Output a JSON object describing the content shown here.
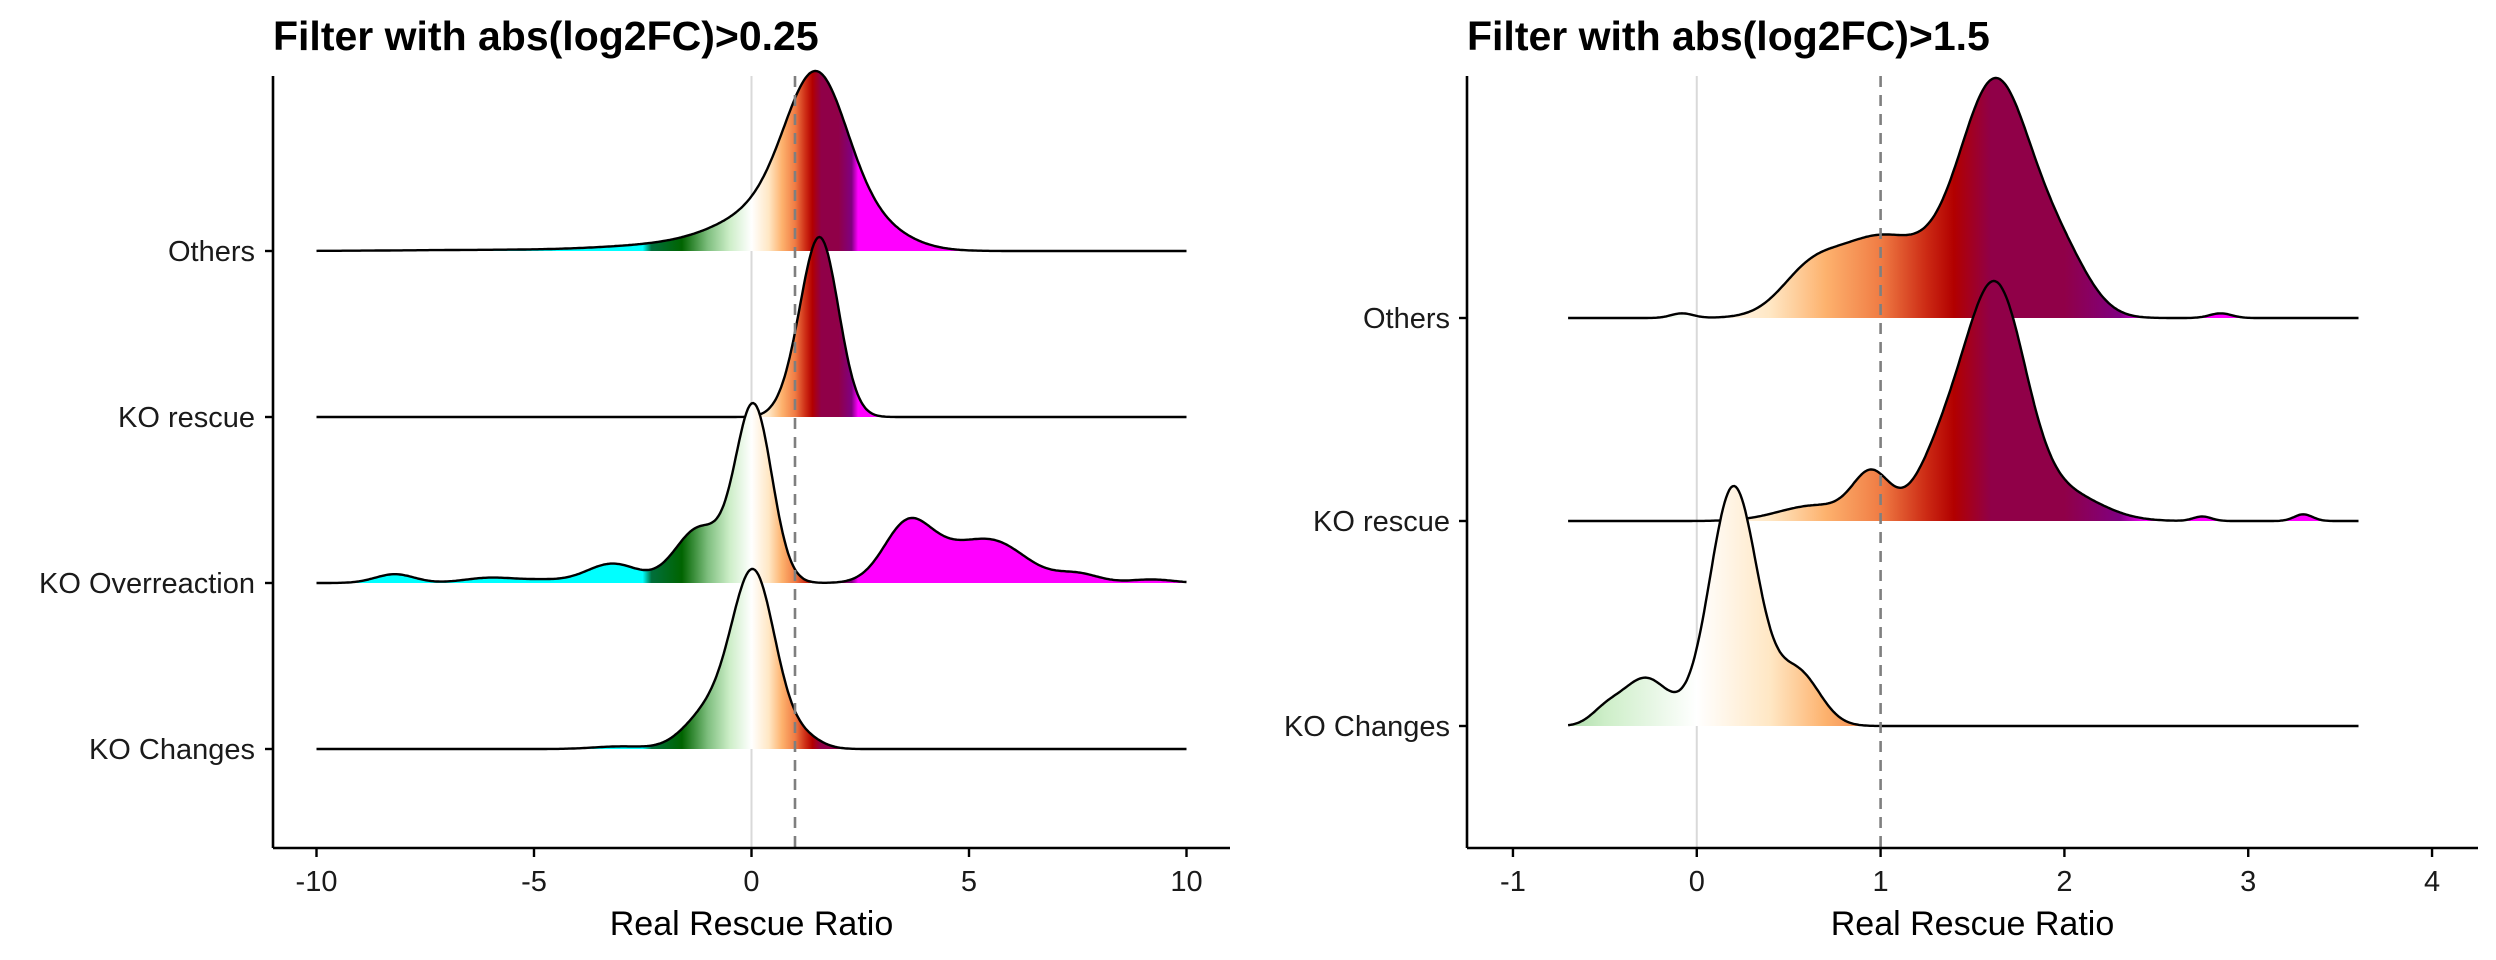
{
  "colors": {
    "ridge_stops": [
      [
        -10,
        "#00ffff"
      ],
      [
        -2.5,
        "#00ffff"
      ],
      [
        -2.3,
        "#006f3c"
      ],
      [
        -1.6,
        "#006400"
      ],
      [
        -1.0,
        "#7fbf7f"
      ],
      [
        -0.5,
        "#cdeec8"
      ],
      [
        0,
        "#ffffff"
      ],
      [
        0.4,
        "#ffe7c4"
      ],
      [
        0.7,
        "#fdb26e"
      ],
      [
        1.0,
        "#f07c44"
      ],
      [
        1.25,
        "#cc2a14"
      ],
      [
        1.4,
        "#b20000"
      ],
      [
        1.6,
        "#900048"
      ],
      [
        2.0,
        "#900048"
      ],
      [
        2.3,
        "#800080"
      ],
      [
        2.45,
        "#ff00ff"
      ],
      [
        10,
        "#ff00ff"
      ]
    ],
    "zero_line": "#d9d9d9",
    "ref_line": "#7f7f7f"
  },
  "chart_data": [
    {
      "type": "ridgeline",
      "title": "Filter with abs(log2FC)>0.25",
      "xlabel": "Real Rescue Ratio",
      "xlim": [
        -11,
        11
      ],
      "xticks": [
        -10,
        -5,
        0,
        5,
        10
      ],
      "xtick_labels": [
        "-10",
        "-5",
        "0",
        "5",
        "10"
      ],
      "vlines": {
        "zero": 0,
        "reference": 1
      },
      "grid": false,
      "series": [
        {
          "name": "Others",
          "xrange": [
            -10,
            10
          ],
          "components": [
            [
              1.5,
              0.7,
              1.0
            ],
            [
              0.8,
              1.3,
              0.35
            ],
            [
              2.8,
              0.8,
              0.12
            ],
            [
              -2.0,
              1.5,
              0.04
            ],
            [
              -6.0,
              2.0,
              0.008
            ]
          ]
        },
        {
          "name": "KO rescue",
          "xrange": [
            -10,
            10
          ],
          "components": [
            [
              1.6,
              0.42,
              1.0
            ],
            [
              1.1,
              0.4,
              0.15
            ]
          ]
        },
        {
          "name": "KO Overreaction",
          "xrange": [
            -10,
            10
          ],
          "components": [
            [
              0.05,
              0.42,
              1.0
            ],
            [
              -1.2,
              0.55,
              0.31
            ],
            [
              -3.2,
              0.6,
              0.11
            ],
            [
              -8.2,
              0.45,
              0.05
            ],
            [
              -6.0,
              0.6,
              0.03
            ],
            [
              -4.8,
              0.5,
              0.015
            ],
            [
              3.6,
              0.55,
              0.34
            ],
            [
              5.5,
              0.8,
              0.24
            ],
            [
              4.5,
              0.5,
              0.06
            ],
            [
              7.5,
              0.5,
              0.05
            ],
            [
              9.2,
              0.5,
              0.02
            ]
          ]
        },
        {
          "name": "KO Changes",
          "xrange": [
            -10,
            10
          ],
          "components": [
            [
              0.05,
              0.5,
              1.0
            ],
            [
              -1.0,
              0.55,
              0.2
            ],
            [
              1.2,
              0.4,
              0.06
            ],
            [
              -3.0,
              0.6,
              0.015
            ]
          ]
        }
      ]
    },
    {
      "type": "ridgeline",
      "title": "Filter with abs(log2FC)>1.5",
      "xlabel": "Real Rescue Ratio",
      "xlim": [
        -1.25,
        4.25
      ],
      "xticks": [
        -1,
        0,
        1,
        2,
        3,
        4
      ],
      "xtick_labels": [
        "-1",
        "0",
        "1",
        "2",
        "3",
        "4"
      ],
      "vlines": {
        "zero": 0,
        "reference": 1
      },
      "grid": false,
      "series": [
        {
          "name": "Others",
          "xrange": [
            -0.7,
            3.6
          ],
          "components": [
            [
              1.63,
              0.2,
              1.0
            ],
            [
              1.0,
              0.28,
              0.35
            ],
            [
              0.6,
              0.15,
              0.12
            ],
            [
              2.0,
              0.15,
              0.2
            ],
            [
              -0.08,
              0.06,
              0.02
            ],
            [
              2.85,
              0.06,
              0.02
            ]
          ]
        },
        {
          "name": "KO rescue",
          "xrange": [
            -0.7,
            3.6
          ],
          "components": [
            [
              1.63,
              0.16,
              1.0
            ],
            [
              1.35,
              0.15,
              0.3
            ],
            [
              0.95,
              0.1,
              0.2
            ],
            [
              0.65,
              0.2,
              0.07
            ],
            [
              2.0,
              0.2,
              0.12
            ],
            [
              2.75,
              0.05,
              0.02
            ],
            [
              3.3,
              0.05,
              0.03
            ]
          ]
        },
        {
          "name": "KO Changes",
          "xrange": [
            -0.7,
            3.6
          ],
          "components": [
            [
              0.2,
              0.13,
              1.0
            ],
            [
              -0.28,
              0.13,
              0.2
            ],
            [
              0.55,
              0.12,
              0.22
            ],
            [
              -0.5,
              0.08,
              0.05
            ]
          ]
        }
      ]
    }
  ]
}
